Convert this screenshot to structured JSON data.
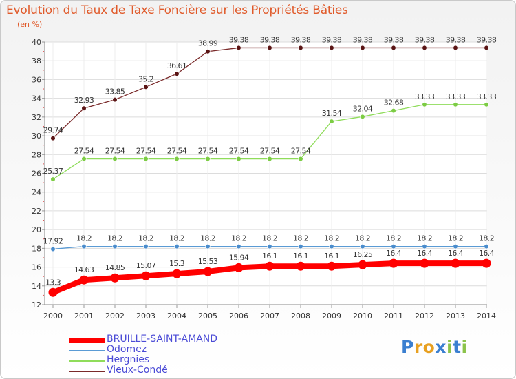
{
  "chart_data": {
    "type": "line",
    "title": "Evolution du Taux de Taxe Foncière sur les Propriétés Bâties",
    "ylabel": "(en %)",
    "xlabel": "",
    "categories": [
      "2000",
      "2001",
      "2002",
      "2003",
      "2004",
      "2005",
      "2006",
      "2007",
      "2008",
      "2009",
      "2010",
      "2011",
      "2012",
      "2013",
      "2014"
    ],
    "ylim": [
      12,
      40
    ],
    "yticks": [
      12,
      14,
      16,
      18,
      20,
      22,
      24,
      26,
      28,
      30,
      32,
      34,
      36,
      38,
      40
    ],
    "series": [
      {
        "name": "BRUILLE-SAINT-AMAND",
        "color": "#ff0000",
        "dot_color": "#ff0000",
        "values": [
          13.3,
          14.63,
          14.85,
          15.07,
          15.3,
          15.53,
          15.94,
          16.1,
          16.1,
          16.1,
          16.25,
          16.4,
          16.4,
          16.4,
          16.4
        ],
        "labels": [
          "13.3",
          "14.63",
          "14.85",
          "15.07",
          "15.3",
          "15.53",
          "15.94",
          "16.1",
          "16.1",
          "16.1",
          "16.25",
          "16.4",
          "16.4",
          "16.4",
          "16.4"
        ]
      },
      {
        "name": "Odomez",
        "color": "#5a9bd5",
        "dot_color": "#4a8ccc",
        "values": [
          17.92,
          18.2,
          18.2,
          18.2,
          18.2,
          18.2,
          18.2,
          18.2,
          18.2,
          18.2,
          18.2,
          18.2,
          18.2,
          18.2,
          18.2
        ],
        "labels": [
          "17.92",
          "18.2",
          "18.2",
          "18.2",
          "18.2",
          "18.2",
          "18.2",
          "18.2",
          "18.2",
          "18.2",
          "18.2",
          "18.2",
          "18.2",
          "18.2",
          "18.2"
        ]
      },
      {
        "name": "Hergnies",
        "color": "#8fdc5a",
        "dot_color": "#7ccc44",
        "values": [
          25.37,
          27.54,
          27.54,
          27.54,
          27.54,
          27.54,
          27.54,
          27.54,
          27.54,
          31.54,
          32.04,
          32.68,
          33.33,
          33.33,
          33.33
        ],
        "labels": [
          "25.37",
          "27.54",
          "27.54",
          "27.54",
          "27.54",
          "27.54",
          "27.54",
          "27.54",
          "27.54",
          "31.54",
          "32.04",
          "32.68",
          "33.33",
          "33.33",
          "33.33"
        ]
      },
      {
        "name": "Vieux-Condé",
        "color": "#7a2a2a",
        "dot_color": "#5a1414",
        "values": [
          29.74,
          32.93,
          33.85,
          35.2,
          36.61,
          38.99,
          39.38,
          39.38,
          39.38,
          39.38,
          39.38,
          39.38,
          39.38,
          39.38,
          39.38
        ],
        "labels": [
          "29.74",
          "32.93",
          "33.85",
          "35.2",
          "36.61",
          "38.99",
          "39.38",
          "39.38",
          "39.38",
          "39.38",
          "39.38",
          "39.38",
          "39.38",
          "39.38",
          "39.38"
        ]
      }
    ],
    "legend_position": "bottom-left",
    "grid": true
  },
  "brand": {
    "letters": [
      "P",
      "r",
      "o",
      "x",
      "i",
      "t",
      "i"
    ],
    "colors": [
      "#3a7fd0",
      "#e8a020",
      "#e8a020",
      "#3a7fd0",
      "#8bc34a",
      "#3a7fd0",
      "#8bc34a"
    ]
  }
}
